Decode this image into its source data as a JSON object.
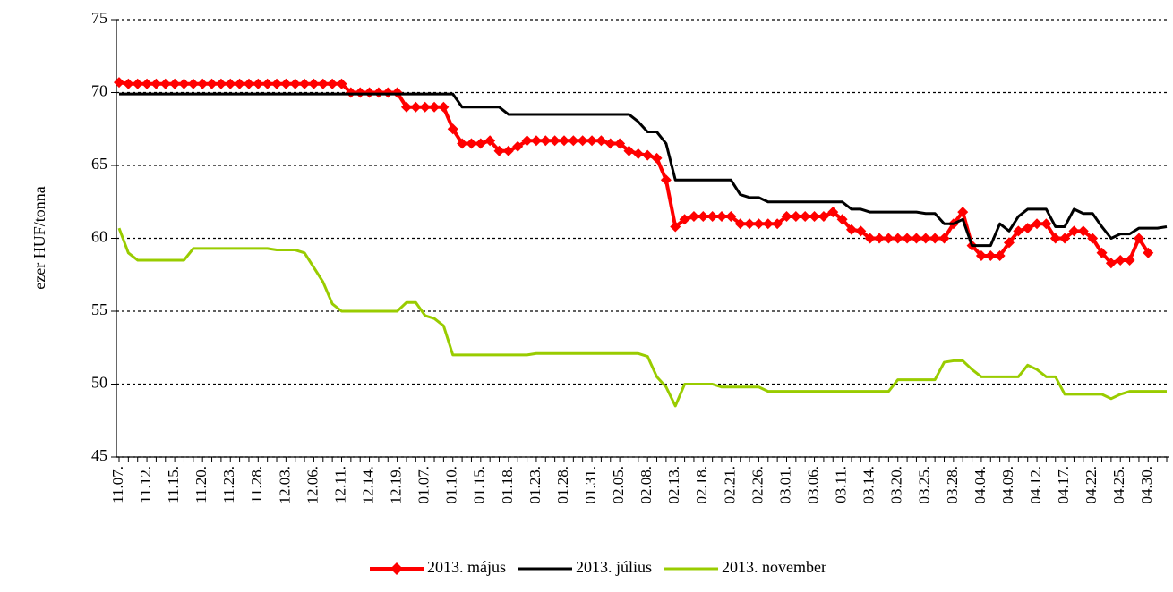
{
  "chart_data": {
    "type": "line",
    "y_label": "ezer HUF/tonna",
    "categories": [
      "11.07.",
      null,
      null,
      "11.12.",
      null,
      null,
      "11.15.",
      null,
      null,
      "11.20.",
      null,
      null,
      "11.23.",
      null,
      null,
      "11.28.",
      null,
      null,
      "12.03.",
      null,
      null,
      "12.06.",
      null,
      null,
      "12.11.",
      null,
      null,
      "12.14.",
      null,
      null,
      "12.19.",
      null,
      null,
      "01.07.",
      null,
      null,
      "01.10.",
      null,
      null,
      "01.15.",
      null,
      null,
      "01.18.",
      null,
      null,
      "01.23.",
      null,
      null,
      "01.28.",
      null,
      null,
      "01.31.",
      null,
      null,
      "02.05.",
      null,
      null,
      "02.08.",
      null,
      null,
      "02.13.",
      null,
      null,
      "02.18.",
      null,
      null,
      "02.21.",
      null,
      null,
      "02.26.",
      null,
      null,
      "03.01.",
      null,
      null,
      "03.06.",
      null,
      null,
      "03.11.",
      null,
      null,
      "03.14.",
      null,
      null,
      "03.20.",
      null,
      null,
      "03.25.",
      null,
      null,
      "03.28.",
      null,
      null,
      "04.04.",
      null,
      null,
      "04.09.",
      null,
      null,
      "04.12.",
      null,
      null,
      "04.17.",
      null,
      null,
      "04.22.",
      null,
      null,
      "04.25.",
      null,
      null,
      "04.30.",
      null,
      null
    ],
    "series": [
      {
        "name": "2013. május",
        "color": "#ff0000",
        "marker": "diamond",
        "values": [
          70.7,
          70.6,
          70.6,
          70.6,
          70.6,
          70.6,
          70.6,
          70.6,
          70.6,
          70.6,
          70.6,
          70.6,
          70.6,
          70.6,
          70.6,
          70.6,
          70.6,
          70.6,
          70.6,
          70.6,
          70.6,
          70.6,
          70.6,
          70.6,
          70.6,
          70.0,
          70.0,
          70.0,
          70.0,
          70.0,
          70.0,
          69.0,
          69.0,
          69.0,
          69.0,
          69.0,
          67.5,
          66.5,
          66.5,
          66.5,
          66.7,
          66.0,
          66.0,
          66.3,
          66.7,
          66.7,
          66.7,
          66.7,
          66.7,
          66.7,
          66.7,
          66.7,
          66.7,
          66.5,
          66.5,
          66.0,
          65.8,
          65.7,
          65.5,
          64.0,
          60.8,
          61.3,
          61.5,
          61.5,
          61.5,
          61.5,
          61.5,
          61.0,
          61.0,
          61.0,
          61.0,
          61.0,
          61.5,
          61.5,
          61.5,
          61.5,
          61.5,
          61.8,
          61.3,
          60.6,
          60.5,
          60.0,
          60.0,
          60.0,
          60.0,
          60.0,
          60.0,
          60.0,
          60.0,
          60.0,
          61.0,
          61.8,
          59.5,
          58.8,
          58.8,
          58.8,
          59.7,
          60.5,
          60.7,
          61.0,
          61.0,
          60.0,
          60.0,
          60.5,
          60.5,
          60.0,
          59.0,
          58.3,
          58.5,
          58.5,
          60.0,
          59.0,
          null,
          null
        ]
      },
      {
        "name": "2013. július",
        "color": "#000000",
        "values": [
          69.9,
          69.9,
          69.9,
          69.9,
          69.9,
          69.9,
          69.9,
          69.9,
          69.9,
          69.9,
          69.9,
          69.9,
          69.9,
          69.9,
          69.9,
          69.9,
          69.9,
          69.9,
          69.9,
          69.9,
          69.9,
          69.9,
          69.9,
          69.9,
          69.9,
          69.9,
          69.9,
          69.9,
          69.9,
          69.9,
          69.9,
          69.9,
          69.9,
          69.9,
          69.9,
          69.9,
          69.9,
          69.0,
          69.0,
          69.0,
          69.0,
          69.0,
          68.5,
          68.5,
          68.5,
          68.5,
          68.5,
          68.5,
          68.5,
          68.5,
          68.5,
          68.5,
          68.5,
          68.5,
          68.5,
          68.5,
          68.0,
          67.3,
          67.3,
          66.5,
          64.0,
          64.0,
          64.0,
          64.0,
          64.0,
          64.0,
          64.0,
          63.0,
          62.8,
          62.8,
          62.5,
          62.5,
          62.5,
          62.5,
          62.5,
          62.5,
          62.5,
          62.5,
          62.5,
          62.0,
          62.0,
          61.8,
          61.8,
          61.8,
          61.8,
          61.8,
          61.8,
          61.7,
          61.7,
          61.0,
          61.0,
          61.3,
          59.5,
          59.5,
          59.5,
          61.0,
          60.5,
          61.5,
          62.0,
          62.0,
          62.0,
          60.8,
          60.8,
          62.0,
          61.7,
          61.7,
          60.8,
          60.0,
          60.3,
          60.3,
          60.7,
          60.7,
          60.7,
          60.8
        ]
      },
      {
        "name": "2013. november",
        "color": "#99cc00",
        "values": [
          60.7,
          59.0,
          58.5,
          58.5,
          58.5,
          58.5,
          58.5,
          58.5,
          59.3,
          59.3,
          59.3,
          59.3,
          59.3,
          59.3,
          59.3,
          59.3,
          59.3,
          59.2,
          59.2,
          59.2,
          59.0,
          58.0,
          57.0,
          55.5,
          55.0,
          55.0,
          55.0,
          55.0,
          55.0,
          55.0,
          55.0,
          55.6,
          55.6,
          54.7,
          54.5,
          54.0,
          52.0,
          52.0,
          52.0,
          52.0,
          52.0,
          52.0,
          52.0,
          52.0,
          52.0,
          52.1,
          52.1,
          52.1,
          52.1,
          52.1,
          52.1,
          52.1,
          52.1,
          52.1,
          52.1,
          52.1,
          52.1,
          51.9,
          50.5,
          49.8,
          48.5,
          50.0,
          50.0,
          50.0,
          50.0,
          49.8,
          49.8,
          49.8,
          49.8,
          49.8,
          49.5,
          49.5,
          49.5,
          49.5,
          49.5,
          49.5,
          49.5,
          49.5,
          49.5,
          49.5,
          49.5,
          49.5,
          49.5,
          49.5,
          50.3,
          50.3,
          50.3,
          50.3,
          50.3,
          51.5,
          51.6,
          51.6,
          51.0,
          50.5,
          50.5,
          50.5,
          50.5,
          50.5,
          51.3,
          51.0,
          50.5,
          50.5,
          49.3,
          49.3,
          49.3,
          49.3,
          49.3,
          49.0,
          49.3,
          49.5,
          49.5,
          49.5,
          49.5,
          49.5
        ]
      }
    ],
    "ylim": [
      45,
      75
    ],
    "yticks": [
      45,
      50,
      55,
      60,
      65,
      70,
      75
    ],
    "grid": true,
    "legend": "bottom"
  }
}
